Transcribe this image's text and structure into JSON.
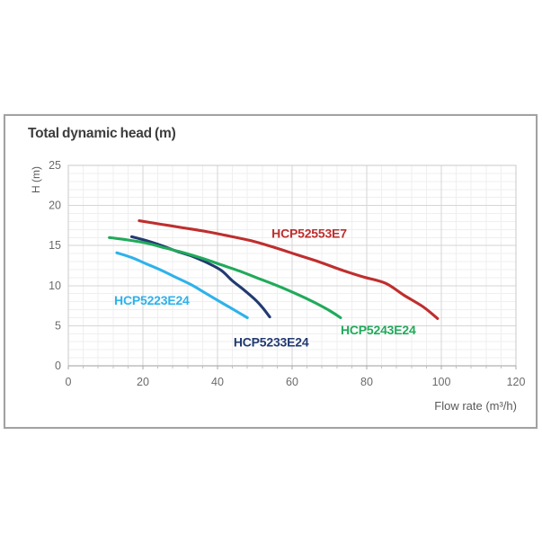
{
  "card": {
    "border_color": "#a2a2a2",
    "background": "#ffffff"
  },
  "chart_data": {
    "type": "line",
    "title": "Total dynamic head (m)",
    "ylabel": "H (m)",
    "xlabel": "Flow rate (m³/h)",
    "xlim": [
      0,
      120
    ],
    "ylim": [
      0,
      25
    ],
    "x_ticks": [
      0,
      20,
      40,
      60,
      80,
      100,
      120
    ],
    "y_ticks": [
      25,
      20,
      15,
      10,
      5,
      0
    ],
    "x_minor_step": 4,
    "x_major_step": 20,
    "y_minor_step": 1,
    "y_major_step": 5,
    "grid": true,
    "legend_position": "inline-labels",
    "colors": {
      "grid_minor": "#efefef",
      "grid_major": "#d6d6d6",
      "plot_border": "#c9c9c9",
      "axis_line": "#9e9e9e",
      "tick_mark_minor": "#c2c2c2",
      "tick_mark_major": "#a8a8a8",
      "tick_label": "#6b6b6b",
      "axis_title": "#595959",
      "chart_title": "#3d3d3d"
    },
    "series": [
      {
        "name": "HCP52553E7",
        "color": "#bf2e2e",
        "points": [
          [
            19,
            18.1
          ],
          [
            25,
            17.65
          ],
          [
            31,
            17.2
          ],
          [
            37,
            16.75
          ],
          [
            43,
            16.2
          ],
          [
            49,
            15.6
          ],
          [
            55,
            14.8
          ],
          [
            61,
            13.9
          ],
          [
            67,
            13.0
          ],
          [
            73,
            12.0
          ],
          [
            79,
            11.1
          ],
          [
            85,
            10.3
          ],
          [
            90,
            8.8
          ],
          [
            95,
            7.4
          ],
          [
            99,
            5.9
          ]
        ],
        "label_pos": [
          54.5,
          16.0
        ]
      },
      {
        "name": "HCP5223E24",
        "color": "#2eb2ea",
        "points": [
          [
            13,
            14.1
          ],
          [
            17,
            13.5
          ],
          [
            21,
            12.7
          ],
          [
            25,
            11.9
          ],
          [
            29,
            11.0
          ],
          [
            33,
            10.1
          ],
          [
            37,
            9.0
          ],
          [
            41,
            7.9
          ],
          [
            44,
            7.1
          ],
          [
            48,
            6.0
          ]
        ],
        "label_pos": [
          12.3,
          7.6
        ]
      },
      {
        "name": "HCP5233E24",
        "color": "#223a70",
        "points": [
          [
            17,
            16.1
          ],
          [
            21,
            15.6
          ],
          [
            25,
            15.0
          ],
          [
            29,
            14.3
          ],
          [
            33,
            13.7
          ],
          [
            37,
            12.9
          ],
          [
            41,
            11.9
          ],
          [
            44,
            10.6
          ],
          [
            47,
            9.5
          ],
          [
            50,
            8.3
          ],
          [
            52,
            7.3
          ],
          [
            54,
            6.1
          ]
        ],
        "label_pos": [
          44.3,
          2.4
        ]
      },
      {
        "name": "HCP5243E24",
        "color": "#21aa5b",
        "points": [
          [
            11,
            16.0
          ],
          [
            16,
            15.7
          ],
          [
            21,
            15.3
          ],
          [
            26,
            14.7
          ],
          [
            31,
            14.1
          ],
          [
            36,
            13.4
          ],
          [
            41,
            12.6
          ],
          [
            46,
            11.8
          ],
          [
            51,
            10.9
          ],
          [
            56,
            10.0
          ],
          [
            61,
            9.0
          ],
          [
            66,
            7.9
          ],
          [
            70,
            6.9
          ],
          [
            73,
            6.0
          ]
        ],
        "label_pos": [
          73.0,
          3.9
        ]
      }
    ]
  }
}
